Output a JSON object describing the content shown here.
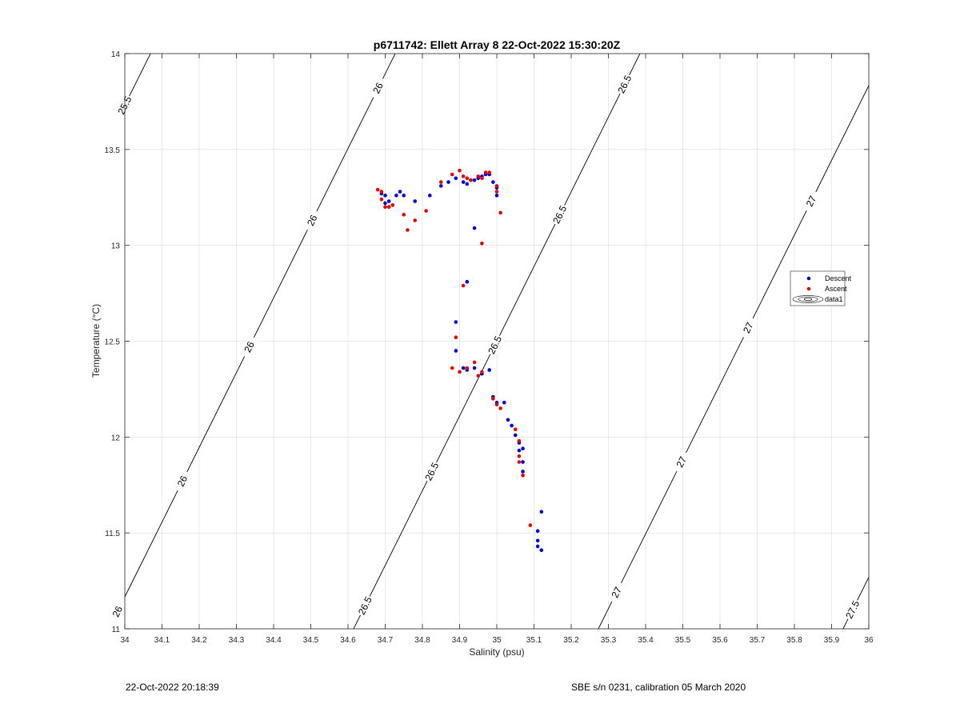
{
  "footer": {
    "timestamp": "22-Oct-2022 20:18:39",
    "calibration": "SBE s/n 0231, calibration 05 March 2020"
  },
  "chart_data": {
    "type": "scatter",
    "title": "p6711742: Ellett Array 8 22-Oct-2022 15:30:20Z",
    "xlabel": "Salinity (psu)",
    "ylabel": "Temperature (°C)",
    "xlim": [
      34,
      36
    ],
    "ylim": [
      11,
      14
    ],
    "xticks": [
      34,
      34.1,
      34.2,
      34.3,
      34.4,
      34.5,
      34.6,
      34.7,
      34.8,
      34.9,
      35,
      35.1,
      35.2,
      35.3,
      35.4,
      35.5,
      35.6,
      35.7,
      35.8,
      35.9,
      36
    ],
    "xtick_labels": [
      "34",
      "34.1",
      "34.2",
      "34.3",
      "34.4",
      "34.5",
      "34.6",
      "34.7",
      "34.8",
      "34.9",
      "35",
      "35.1",
      "35.2",
      "35.3",
      "35.4",
      "35.5",
      "35.6",
      "35.7",
      "35.8",
      "35.9",
      "36"
    ],
    "yticks": [
      11,
      11.5,
      12,
      12.5,
      13,
      13.5,
      14
    ],
    "ytick_labels": [
      "11",
      "11.5",
      "12",
      "12.5",
      "13",
      "13.5",
      "14"
    ],
    "grid": true,
    "legend_position": "right",
    "series": [
      {
        "name": "Descent",
        "color": "#0000cc",
        "points": [
          [
            34.69,
            13.27
          ],
          [
            34.7,
            13.26
          ],
          [
            34.7,
            13.22
          ],
          [
            34.71,
            13.23
          ],
          [
            34.73,
            13.26
          ],
          [
            34.74,
            13.28
          ],
          [
            34.75,
            13.26
          ],
          [
            34.78,
            13.23
          ],
          [
            34.82,
            13.26
          ],
          [
            34.85,
            13.31
          ],
          [
            34.87,
            13.33
          ],
          [
            34.89,
            13.35
          ],
          [
            34.91,
            13.33
          ],
          [
            34.92,
            13.32
          ],
          [
            34.93,
            13.34
          ],
          [
            34.94,
            13.34
          ],
          [
            34.95,
            13.35
          ],
          [
            34.96,
            13.36
          ],
          [
            34.97,
            13.37
          ],
          [
            34.98,
            13.37
          ],
          [
            34.99,
            13.33
          ],
          [
            35.0,
            13.3
          ],
          [
            35.0,
            13.26
          ],
          [
            34.94,
            13.09
          ],
          [
            34.92,
            12.81
          ],
          [
            34.89,
            12.6
          ],
          [
            34.89,
            12.45
          ],
          [
            34.91,
            12.36
          ],
          [
            34.92,
            12.35
          ],
          [
            34.94,
            12.36
          ],
          [
            34.96,
            12.33
          ],
          [
            34.98,
            12.35
          ],
          [
            34.99,
            12.21
          ],
          [
            35.0,
            12.18
          ],
          [
            35.02,
            12.18
          ],
          [
            35.03,
            12.09
          ],
          [
            35.04,
            12.06
          ],
          [
            35.05,
            12.01
          ],
          [
            35.06,
            11.97
          ],
          [
            35.06,
            11.93
          ],
          [
            35.07,
            11.94
          ],
          [
            35.07,
            11.87
          ],
          [
            35.07,
            11.82
          ],
          [
            35.12,
            11.61
          ],
          [
            35.11,
            11.51
          ],
          [
            35.11,
            11.46
          ],
          [
            35.11,
            11.43
          ],
          [
            35.12,
            11.41
          ]
        ]
      },
      {
        "name": "Ascent",
        "color": "#dd0000",
        "points": [
          [
            34.68,
            13.29
          ],
          [
            34.69,
            13.28
          ],
          [
            34.69,
            13.24
          ],
          [
            34.7,
            13.2
          ],
          [
            34.71,
            13.2
          ],
          [
            34.72,
            13.21
          ],
          [
            34.75,
            13.16
          ],
          [
            34.76,
            13.08
          ],
          [
            34.78,
            13.13
          ],
          [
            34.81,
            13.18
          ],
          [
            34.85,
            13.33
          ],
          [
            34.88,
            13.37
          ],
          [
            34.9,
            13.39
          ],
          [
            34.91,
            13.36
          ],
          [
            34.92,
            13.35
          ],
          [
            34.93,
            13.34
          ],
          [
            34.95,
            13.36
          ],
          [
            34.96,
            13.35
          ],
          [
            34.97,
            13.38
          ],
          [
            34.98,
            13.38
          ],
          [
            35.0,
            13.31
          ],
          [
            35.0,
            13.28
          ],
          [
            35.01,
            13.17
          ],
          [
            34.96,
            13.01
          ],
          [
            34.91,
            12.79
          ],
          [
            34.89,
            12.52
          ],
          [
            34.88,
            12.36
          ],
          [
            34.9,
            12.34
          ],
          [
            34.92,
            12.36
          ],
          [
            34.94,
            12.39
          ],
          [
            34.95,
            12.32
          ],
          [
            34.96,
            12.34
          ],
          [
            34.99,
            12.2
          ],
          [
            35.0,
            12.17
          ],
          [
            35.01,
            12.15
          ],
          [
            35.05,
            12.04
          ],
          [
            35.06,
            11.98
          ],
          [
            35.06,
            11.9
          ],
          [
            35.06,
            11.87
          ],
          [
            35.07,
            11.8
          ],
          [
            35.09,
            11.54
          ]
        ]
      }
    ],
    "density_contours": [
      {
        "sigma": 25.5,
        "color": "#000000",
        "label_positions": [
          [
            34.04,
            13.73
          ]
        ]
      },
      {
        "sigma": 26,
        "color": "#000000",
        "label_positions": [
          [
            34.03,
            11.09
          ],
          [
            34.2,
            11.77
          ],
          [
            34.37,
            12.47
          ],
          [
            34.54,
            13.13
          ],
          [
            34.71,
            13.82
          ]
        ]
      },
      {
        "sigma": 26.5,
        "color": "#000000",
        "label_positions": [
          [
            34.68,
            11.12
          ],
          [
            34.86,
            11.82
          ],
          [
            35.02,
            12.48
          ],
          [
            35.19,
            13.16
          ],
          [
            35.36,
            13.84
          ]
        ]
      },
      {
        "sigma": 27,
        "color": "#000000",
        "label_positions": [
          [
            35.33,
            11.19
          ],
          [
            35.5,
            11.87
          ],
          [
            35.67,
            12.57
          ],
          [
            35.84,
            13.23
          ]
        ]
      },
      {
        "sigma": 27.5,
        "color": "#000000",
        "label_positions": [
          [
            35.96,
            11.1
          ]
        ]
      }
    ],
    "legend": {
      "entries": [
        "Descent",
        "Ascent",
        "data1"
      ]
    }
  }
}
